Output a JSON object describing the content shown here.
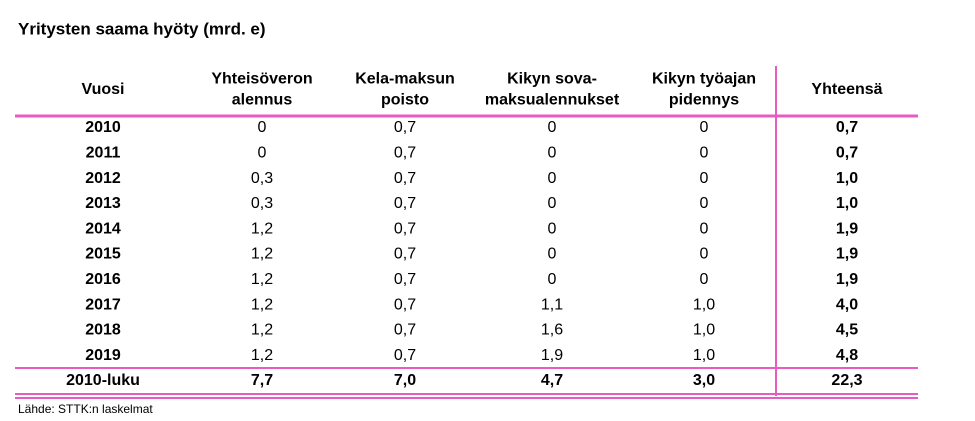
{
  "title": "Yritysten saama hyöty (mrd. e)",
  "table": {
    "headers": [
      [
        "Vuosi"
      ],
      [
        "Yhteisöveron",
        "alennus"
      ],
      [
        "Kela-maksun",
        "poisto"
      ],
      [
        "Kikyn sova-",
        "maksualennukset"
      ],
      [
        "Kikyn työajan",
        "pidennys"
      ],
      [
        "Yhteensä"
      ]
    ],
    "rows": [
      [
        "2010",
        "0",
        "0,7",
        "0",
        "0",
        "0,7"
      ],
      [
        "2011",
        "0",
        "0,7",
        "0",
        "0",
        "0,7"
      ],
      [
        "2012",
        "0,3",
        "0,7",
        "0",
        "0",
        "1,0"
      ],
      [
        "2013",
        "0,3",
        "0,7",
        "0",
        "0",
        "1,0"
      ],
      [
        "2014",
        "1,2",
        "0,7",
        "0",
        "0",
        "1,9"
      ],
      [
        "2015",
        "1,2",
        "0,7",
        "0",
        "0",
        "1,9"
      ],
      [
        "2016",
        "1,2",
        "0,7",
        "0",
        "0",
        "1,9"
      ],
      [
        "2017",
        "1,2",
        "0,7",
        "1,1",
        "1,0",
        "4,0"
      ],
      [
        "2018",
        "1,2",
        "0,7",
        "1,6",
        "1,0",
        "4,5"
      ],
      [
        "2019",
        "1,2",
        "0,7",
        "1,9",
        "1,0",
        "4,8"
      ]
    ],
    "total": [
      "2010-luku",
      "7,7",
      "7,0",
      "4,7",
      "3,0",
      "22,3"
    ]
  },
  "source": "Lähde: STTK:n laskelmat"
}
